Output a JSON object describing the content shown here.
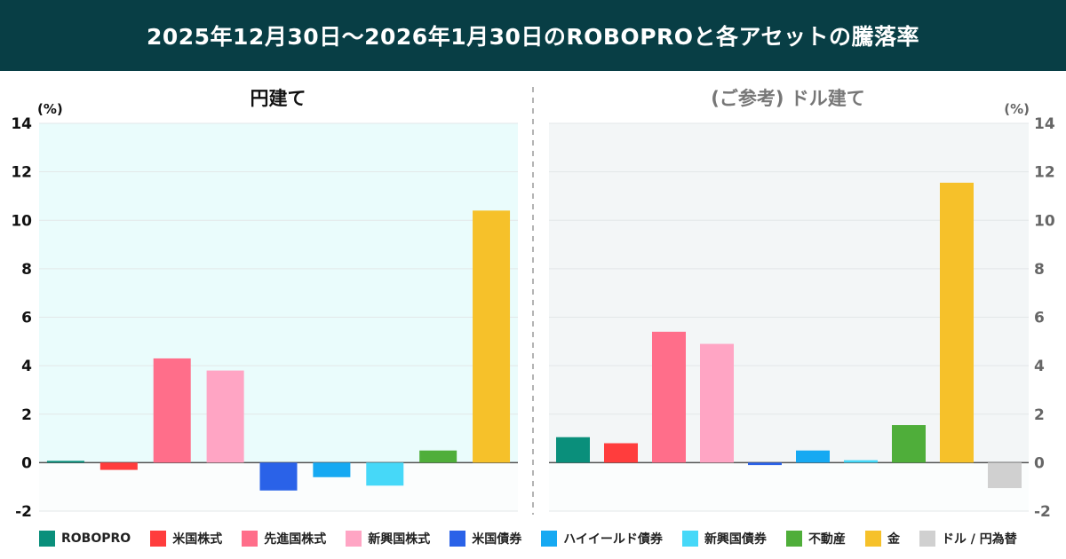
{
  "header": {
    "title": "2025年12月30日〜2026年1月30日のROBOPROと各アセットの騰落率"
  },
  "chart_data": [
    {
      "type": "bar",
      "title": "円建て",
      "unit_label": "(%)",
      "ylim": [
        -2,
        14
      ],
      "ticks": [
        -2,
        0,
        2,
        4,
        6,
        8,
        10,
        12,
        14
      ],
      "categories": [
        "ROBOPRO",
        "米国株式",
        "先進国株式",
        "新興国株式",
        "米国債券",
        "ハイイールド債券",
        "新興国債券",
        "不動産",
        "金"
      ],
      "values": [
        0.05,
        -0.3,
        4.3,
        3.8,
        -1.15,
        -0.6,
        -0.95,
        0.5,
        10.4
      ],
      "background": "#eafcfc"
    },
    {
      "type": "bar",
      "title": "(ご参考) ドル建て",
      "unit_label": "(%)",
      "ylim": [
        -2,
        14
      ],
      "ticks": [
        -2,
        0,
        2,
        4,
        6,
        8,
        10,
        12,
        14
      ],
      "categories": [
        "ROBOPRO",
        "米国株式",
        "先進国株式",
        "新興国株式",
        "米国債券",
        "ハイイールド債券",
        "新興国債券",
        "不動産",
        "金",
        "ドル / 円為替"
      ],
      "values": [
        1.05,
        0.8,
        5.4,
        4.9,
        -0.1,
        0.5,
        0.1,
        1.55,
        11.55,
        -1.05
      ],
      "background": "#f3f6f7"
    }
  ],
  "legend": [
    {
      "label": "ROBOPRO",
      "color": "#0a8f7b"
    },
    {
      "label": "米国株式",
      "color": "#ff3d3d"
    },
    {
      "label": "先進国株式",
      "color": "#ff6e8a"
    },
    {
      "label": "新興国株式",
      "color": "#ffa5c4"
    },
    {
      "label": "米国債券",
      "color": "#2a62e8"
    },
    {
      "label": "ハイイールド債券",
      "color": "#16a9f2"
    },
    {
      "label": "新興国債券",
      "color": "#46d8f8"
    },
    {
      "label": "不動産",
      "color": "#4fae3a"
    },
    {
      "label": "金",
      "color": "#f6c12a"
    },
    {
      "label": "ドル / 円為替",
      "color": "#d0d0d0"
    }
  ]
}
